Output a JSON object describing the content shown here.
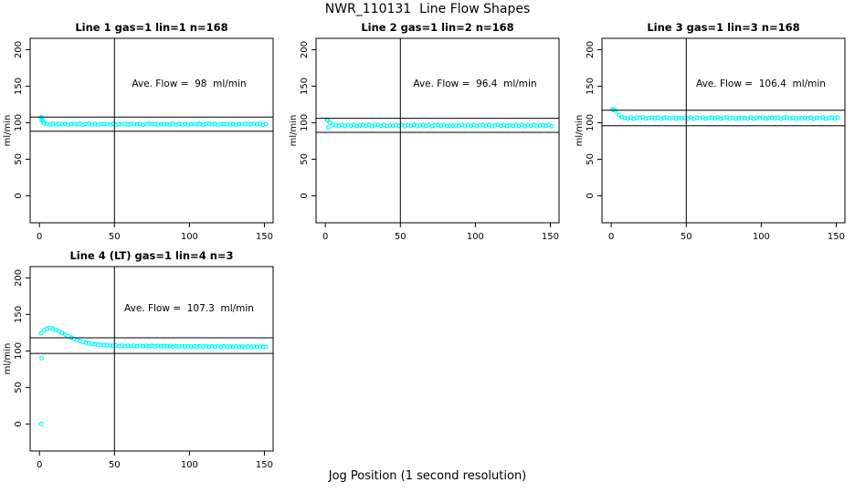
{
  "figure": {
    "title": "NWR_110131  Line Flow Shapes",
    "xlabel": "Jog Position (1 second resolution)"
  },
  "chart_data": [
    {
      "type": "scatter",
      "title": "Line 1 gas=1 lin=1 n=168",
      "annotation": "Ave. Flow =  98  ml/min",
      "ave_flow_ml_min": 98,
      "n": 168,
      "ylabel": "ml/min",
      "x_ticks": [
        0,
        50,
        100,
        150
      ],
      "y_ticks": [
        0,
        50,
        100,
        150,
        200
      ],
      "xlim": [
        -6.2,
        155.8
      ],
      "ylim": [
        -37,
        215.5
      ],
      "vline_x": 50,
      "hlines": [
        107.8,
        88.2
      ],
      "marker_color": "#00FFFF",
      "x_start": 1,
      "x_step": 2,
      "y": [
        107.5,
        99.6,
        98.1,
        97.4,
        98.7,
        97.0,
        98.3,
        97.8,
        98.8,
        97.2,
        98.0,
        98.5,
        97.6,
        98.6,
        97.1,
        98.2,
        98.8,
        97.5,
        98.4,
        97.3,
        97.9,
        97.7,
        98.1,
        97.4,
        98.7,
        97.0,
        98.3,
        97.8,
        98.8,
        97.2,
        98.0,
        98.5,
        97.6,
        98.6,
        97.1,
        98.2,
        98.8,
        97.5,
        98.4,
        97.3,
        97.9,
        97.7,
        98.1,
        97.4,
        98.7,
        97.0,
        98.3,
        97.8,
        98.8,
        97.2,
        98.0,
        98.5,
        97.6,
        98.6,
        97.1,
        98.2,
        98.8,
        97.5,
        98.4,
        97.3,
        97.9,
        97.7,
        98.1,
        97.4,
        98.7,
        97.0,
        98.3,
        97.8,
        98.8,
        97.2,
        98.0,
        98.5,
        97.6,
        98.6,
        97.1,
        98.2
      ],
      "extra_points": [
        [
          1.5,
          107.0
        ],
        [
          1.8,
          104.0
        ],
        [
          2.2,
          101.5
        ]
      ]
    },
    {
      "type": "scatter",
      "title": "Line 2 gas=1 lin=2 n=168",
      "annotation": "Ave. Flow =  96.4  ml/min",
      "ave_flow_ml_min": 96.4,
      "n": 168,
      "ylabel": "ml/min",
      "x_ticks": [
        0,
        50,
        100,
        150
      ],
      "y_ticks": [
        0,
        50,
        100,
        150,
        200
      ],
      "xlim": [
        -6.2,
        155.8
      ],
      "ylim": [
        -37,
        215.5
      ],
      "vline_x": 50,
      "hlines": [
        106.0,
        86.8
      ],
      "marker_color": "#00FFFF",
      "x_start": 1,
      "x_step": 2,
      "y": [
        104.3,
        100.2,
        97.2,
        96.3,
        95.6,
        96.9,
        95.2,
        96.5,
        96.0,
        97.0,
        95.4,
        96.2,
        96.7,
        95.8,
        96.8,
        95.3,
        96.4,
        97.0,
        95.7,
        96.6,
        95.5,
        96.1,
        95.9,
        96.3,
        95.6,
        96.9,
        95.2,
        96.5,
        96.0,
        97.0,
        95.4,
        96.2,
        96.7,
        95.8,
        96.8,
        95.3,
        96.4,
        97.0,
        95.7,
        96.6,
        95.5,
        96.1,
        95.9,
        96.3,
        95.6,
        96.9,
        95.2,
        96.5,
        96.0,
        97.0,
        95.4,
        96.2,
        96.7,
        95.8,
        96.8,
        95.3,
        96.4,
        97.0,
        95.7,
        96.6,
        95.5,
        96.1,
        95.9,
        96.3,
        95.6,
        96.9,
        95.2,
        96.5,
        96.0,
        97.0,
        95.4,
        96.2,
        96.7,
        95.8,
        96.8,
        95.3
      ],
      "extra_points": [
        [
          1.2,
          103.6
        ],
        [
          2.0,
          93.5
        ]
      ]
    },
    {
      "type": "scatter",
      "title": "Line 3 gas=1 lin=3 n=168",
      "annotation": "Ave. Flow =  106.4  ml/min",
      "ave_flow_ml_min": 106.4,
      "n": 168,
      "ylabel": "ml/min",
      "x_ticks": [
        0,
        50,
        100,
        150
      ],
      "y_ticks": [
        0,
        50,
        100,
        150,
        200
      ],
      "xlim": [
        -6.2,
        155.8
      ],
      "ylim": [
        -37,
        215.5
      ],
      "vline_x": 50,
      "hlines": [
        117.0,
        95.8
      ],
      "marker_color": "#00FFFF",
      "x_start": 1,
      "x_step": 2,
      "y": [
        118.2,
        116.5,
        110.5,
        107.5,
        106.5,
        105.8,
        107.1,
        105.4,
        106.7,
        106.2,
        107.2,
        105.6,
        106.4,
        106.9,
        106.0,
        107.0,
        105.5,
        106.6,
        107.2,
        105.9,
        106.8,
        105.7,
        106.3,
        106.1,
        106.5,
        105.8,
        107.1,
        105.4,
        106.7,
        106.2,
        107.2,
        105.6,
        106.4,
        106.9,
        106.0,
        107.0,
        105.5,
        106.6,
        107.2,
        105.9,
        106.8,
        105.7,
        106.3,
        106.1,
        106.5,
        105.8,
        107.1,
        105.4,
        106.7,
        106.2,
        107.2,
        105.6,
        106.4,
        106.9,
        106.0,
        107.0,
        105.5,
        106.6,
        107.2,
        105.9,
        106.8,
        105.7,
        106.3,
        106.1,
        106.5,
        105.8,
        107.1,
        105.4,
        106.7,
        106.2,
        107.2,
        105.6,
        106.4,
        106.9,
        106.0,
        107.0
      ],
      "extra_points": [
        [
          1.5,
          117.5
        ]
      ]
    },
    {
      "type": "scatter",
      "title": "Line 4 (LT) gas=1 lin=4 n=3",
      "annotation": "Ave. Flow =  107.3  ml/min",
      "ave_flow_ml_min": 107.3,
      "n": 3,
      "ylabel": "ml/min",
      "x_ticks": [
        0,
        50,
        100,
        150
      ],
      "y_ticks": [
        0,
        50,
        100,
        150,
        200
      ],
      "xlim": [
        -6.2,
        155.8
      ],
      "ylim": [
        -37,
        215.5
      ],
      "vline_x": 50,
      "hlines": [
        118.0,
        96.6
      ],
      "marker_color": "#00FFFF",
      "x_start": 1,
      "x_step": 2,
      "y": [
        124.0,
        128.5,
        130.5,
        131.2,
        130.5,
        128.8,
        126.8,
        124.8,
        122.5,
        120.3,
        118.3,
        116.5,
        115.0,
        113.6,
        112.4,
        111.4,
        110.5,
        109.8,
        109.2,
        108.7,
        108.3,
        107.9,
        107.6,
        107.3,
        107.1,
        107.6,
        106.9,
        107.4,
        106.7,
        107.3,
        106.6,
        107.2,
        106.5,
        107.1,
        106.4,
        107.0,
        106.4,
        106.9,
        106.3,
        106.8,
        106.2,
        106.8,
        106.2,
        106.7,
        106.1,
        106.6,
        106.1,
        106.5,
        106.0,
        106.5,
        106.0,
        106.4,
        105.9,
        106.4,
        105.9,
        106.3,
        105.8,
        106.3,
        105.8,
        106.2,
        105.7,
        106.2,
        105.7,
        106.1,
        105.6,
        106.1,
        105.6,
        106.0,
        105.6,
        106.0,
        105.5,
        106.0,
        105.5,
        105.9,
        105.6,
        105.8
      ],
      "extra_points": [
        [
          1.0,
          0.0
        ],
        [
          1.5,
          90.0
        ]
      ]
    }
  ]
}
